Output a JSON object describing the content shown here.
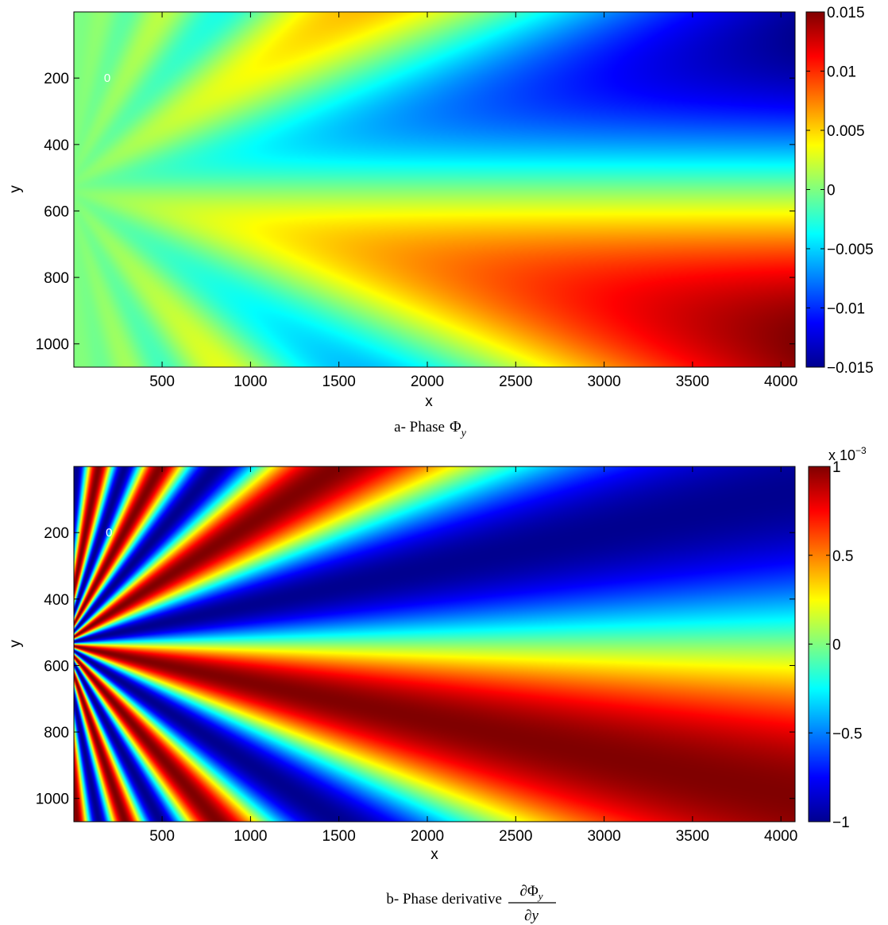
{
  "figure": {
    "caption_a_prefix": "a- Phase",
    "caption_b_prefix": "b- Phase derivative",
    "phi": "Φ",
    "sub_y": "y",
    "partial": "∂",
    "partial_y": "∂y"
  },
  "colors": {
    "jet": [
      "#00008f",
      "#0000ff",
      "#00ffff",
      "#ffff00",
      "#ff0000",
      "#800000"
    ],
    "contour": "#ffffff"
  },
  "chart_data": [
    {
      "type": "heatmap",
      "title": "",
      "xlabel": "x",
      "ylabel": "y",
      "xlim": [
        1,
        4080
      ],
      "ylim": [
        1,
        1070
      ],
      "y_reversed": true,
      "xticks": [
        500,
        1000,
        1500,
        2000,
        2500,
        3000,
        3500,
        4000
      ],
      "xtick_labels": [
        "500",
        "1000",
        "1500",
        "2000",
        "2500",
        "3000",
        "3500",
        "4000"
      ],
      "yticks": [
        200,
        400,
        600,
        800,
        1000
      ],
      "ytick_labels": [
        "200",
        "400",
        "600",
        "800",
        "1000"
      ],
      "colorbar": {
        "range": [
          -0.015,
          0.015
        ],
        "ticks": [
          0.015,
          0.01,
          0.005,
          0,
          -0.005,
          -0.01,
          -0.015
        ],
        "tick_labels": [
          "0.015",
          "0.01",
          "0.005",
          "0",
          "−0.005",
          "−0.01",
          "−0.015"
        ],
        "exponent_label": ""
      },
      "field": {
        "pattern": "radial fringes diverging from left edge center",
        "center": [
          0,
          535
        ],
        "fringe_scale": 0.15,
        "amplitude_at_left": 0.0,
        "amplitude_at_right": 0.015
      },
      "contour_label": {
        "text": "0",
        "x": 190,
        "y": 200
      }
    },
    {
      "type": "heatmap",
      "title": "",
      "xlabel": "x",
      "ylabel": "y",
      "xlim": [
        1,
        4080
      ],
      "ylim": [
        1,
        1070
      ],
      "y_reversed": true,
      "xticks": [
        500,
        1000,
        1500,
        2000,
        2500,
        3000,
        3500,
        4000
      ],
      "xtick_labels": [
        "500",
        "1000",
        "1500",
        "2000",
        "2500",
        "3000",
        "3500",
        "4000"
      ],
      "yticks": [
        200,
        400,
        600,
        800,
        1000
      ],
      "ytick_labels": [
        "200",
        "400",
        "600",
        "800",
        "1000"
      ],
      "colorbar": {
        "range": [
          -1,
          1
        ],
        "ticks": [
          1,
          0.5,
          0,
          -0.5,
          -1
        ],
        "tick_labels": [
          "1",
          "0.5",
          "0",
          "−0.5",
          "−1"
        ],
        "exponent_label": "x 10",
        "exponent_power": "−3"
      },
      "field": {
        "pattern": "radial fringes diverging from left edge center",
        "center": [
          0,
          535
        ],
        "fringe_scale": 0.15,
        "amplitude_at_left": 0.001,
        "amplitude_at_right": 0.001
      },
      "contour_label": {
        "text": "0",
        "x": 200,
        "y": 200
      }
    }
  ]
}
